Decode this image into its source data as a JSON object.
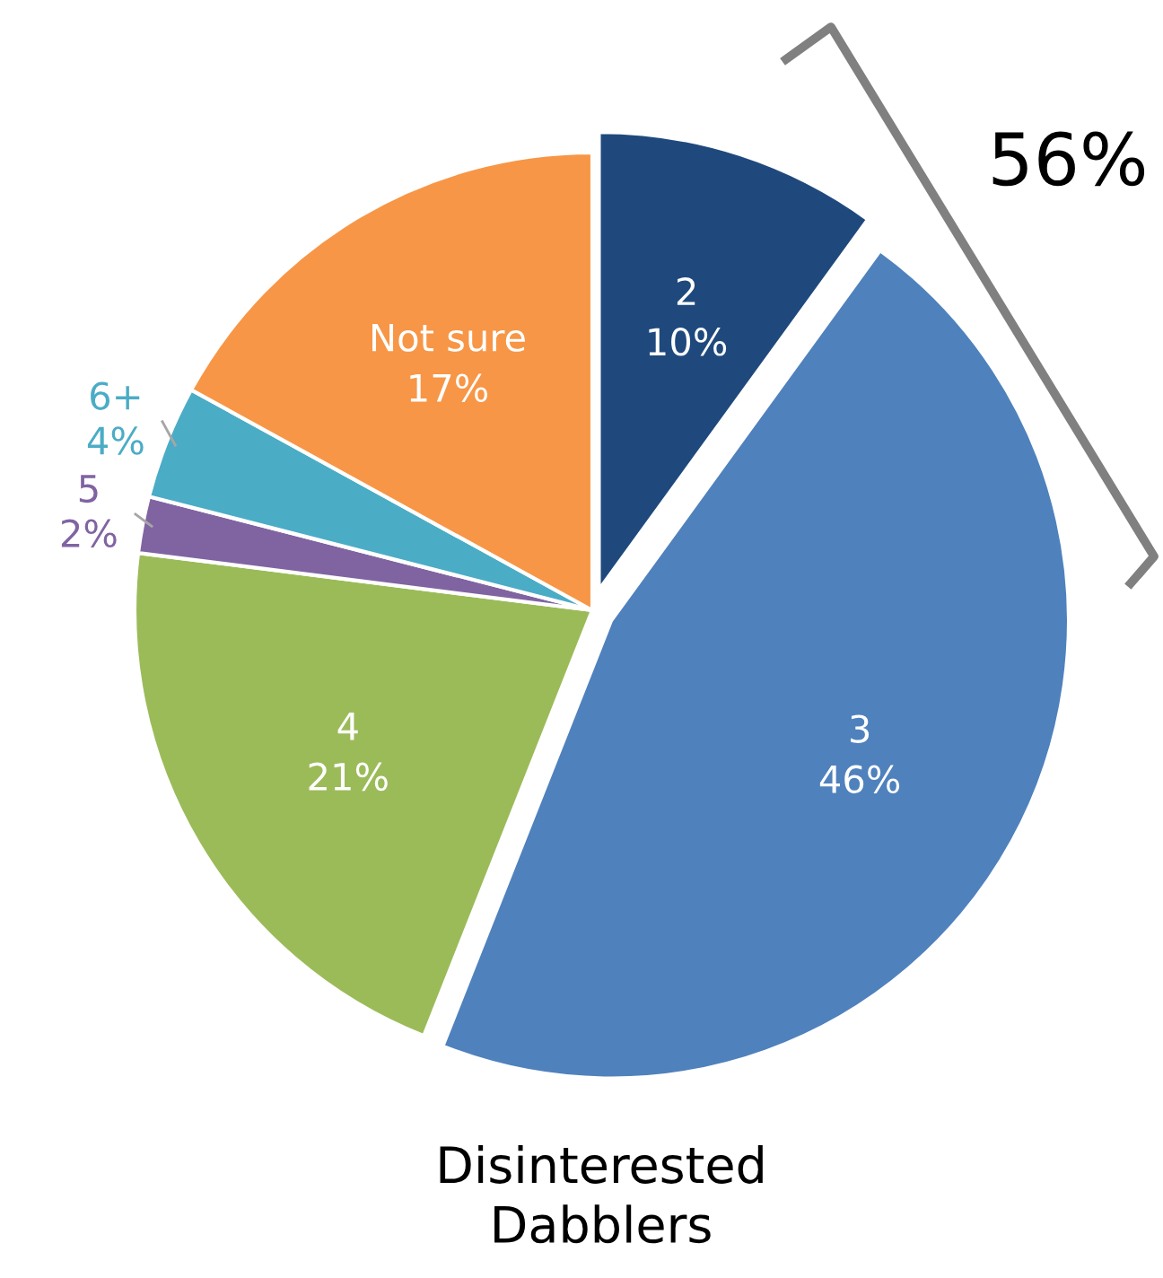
{
  "chart_data": {
    "type": "pie",
    "title": "Disinterested\nDabblers",
    "categories": [
      "2",
      "3",
      "4",
      "5",
      "6+",
      "Not sure"
    ],
    "values": [
      10,
      46,
      21,
      2,
      4,
      17
    ],
    "value_labels": [
      "10%",
      "46%",
      "21%",
      "2%",
      "4%",
      "17%"
    ],
    "colors": [
      "#1f497d",
      "#4f81bd",
      "#9bbb59",
      "#8064a2",
      "#4bacc6",
      "#f79646"
    ],
    "annotations": [
      "56%"
    ]
  }
}
